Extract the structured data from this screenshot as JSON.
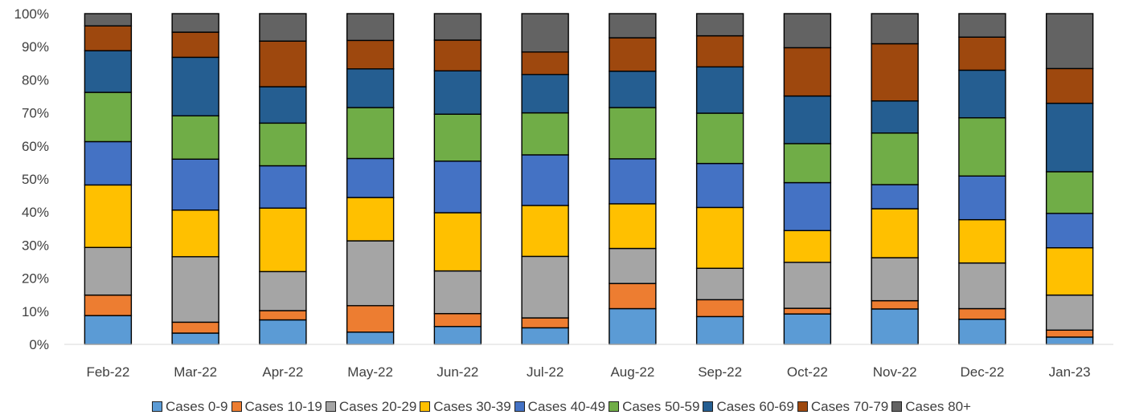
{
  "chart_data": {
    "type": "bar",
    "stacked": true,
    "title": "",
    "xlabel": "",
    "ylabel": "",
    "ylim": [
      0,
      100
    ],
    "yticks": [
      "0%",
      "10%",
      "20%",
      "30%",
      "40%",
      "50%",
      "60%",
      "70%",
      "80%",
      "90%",
      "100%"
    ],
    "grid": false,
    "legend_position": "bottom",
    "categories": [
      "Feb-22",
      "Mar-22",
      "Apr-22",
      "May-22",
      "Jun-22",
      "Jul-22",
      "Aug-22",
      "Sep-22",
      "Oct-22",
      "Nov-22",
      "Dec-22",
      "Jan-23"
    ],
    "series": [
      {
        "name": "Cases 0-9",
        "color": "#5B9BD5",
        "values": [
          8.7,
          3.4,
          7.4,
          3.7,
          5.4,
          5.0,
          10.8,
          8.4,
          9.2,
          10.7,
          7.6,
          2.2
        ]
      },
      {
        "name": "Cases 10-19",
        "color": "#ED7D31",
        "values": [
          6.2,
          3.3,
          2.8,
          8.0,
          3.9,
          3.0,
          7.6,
          5.1,
          1.7,
          2.5,
          3.2,
          2.1
        ]
      },
      {
        "name": "Cases 20-29",
        "color": "#A5A5A5",
        "values": [
          14.4,
          19.8,
          11.8,
          19.6,
          12.9,
          18.6,
          10.6,
          9.5,
          13.9,
          13.0,
          13.8,
          10.6
        ]
      },
      {
        "name": "Cases 30-39",
        "color": "#FFC000",
        "values": [
          18.9,
          14.1,
          19.2,
          13.1,
          17.6,
          15.4,
          13.5,
          18.4,
          9.6,
          14.8,
          13.1,
          14.3
        ]
      },
      {
        "name": "Cases 40-49",
        "color": "#4472C4",
        "values": [
          13.1,
          15.4,
          12.8,
          11.8,
          15.6,
          15.3,
          13.6,
          13.3,
          14.5,
          7.3,
          13.2,
          10.4
        ]
      },
      {
        "name": "Cases 50-59",
        "color": "#70AD47",
        "values": [
          14.9,
          13.1,
          12.9,
          15.4,
          14.2,
          12.7,
          15.5,
          15.2,
          11.8,
          15.6,
          17.6,
          12.6
        ]
      },
      {
        "name": "Cases 60-69",
        "color": "#255E91",
        "values": [
          12.6,
          17.7,
          11.0,
          11.7,
          13.1,
          11.6,
          11.0,
          14.0,
          14.4,
          9.7,
          14.4,
          20.7
        ]
      },
      {
        "name": "Cases 70-79",
        "color": "#9E480E",
        "values": [
          7.5,
          7.6,
          13.8,
          8.6,
          9.3,
          6.8,
          10.1,
          9.4,
          14.6,
          17.3,
          10.0,
          10.5
        ]
      },
      {
        "name": "Cases 80+",
        "color": "#636363",
        "values": [
          3.7,
          5.6,
          8.3,
          8.1,
          8.0,
          11.6,
          7.3,
          6.7,
          10.3,
          9.1,
          7.1,
          16.6
        ]
      }
    ]
  }
}
